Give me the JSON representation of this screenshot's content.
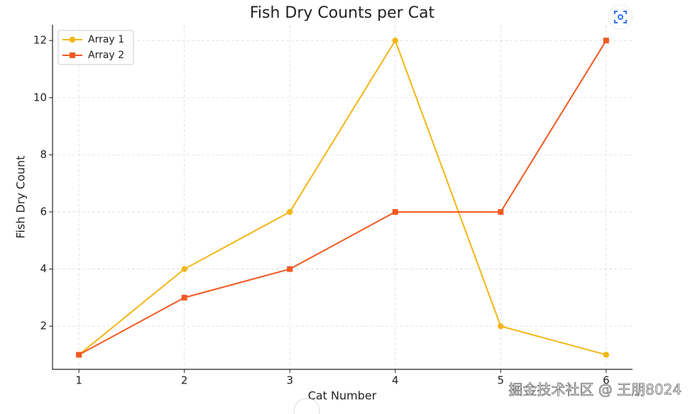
{
  "chart_data": {
    "type": "line",
    "title": "Fish Dry Counts per Cat",
    "xlabel": "Cat Number",
    "ylabel": "Fish Dry Count",
    "x": [
      1,
      2,
      3,
      4,
      5,
      6
    ],
    "series": [
      {
        "name": "Array 1",
        "color": "#f4b616",
        "marker": "circle",
        "values": [
          1,
          4,
          6,
          12,
          2,
          1
        ]
      },
      {
        "name": "Array 2",
        "color": "#f05a22",
        "marker": "square",
        "values": [
          1,
          3,
          4,
          6,
          6,
          12
        ]
      }
    ],
    "xlim": [
      0.75,
      6.25
    ],
    "xticks": [
      1,
      2,
      3,
      4,
      5,
      6
    ],
    "ylim": [
      0.49,
      12.55
    ],
    "yticks": [
      2,
      4,
      6,
      8,
      10,
      12
    ],
    "grid": true,
    "legend": "upper left",
    "watermark": "掘金技术社区 @ 王朋8024"
  }
}
